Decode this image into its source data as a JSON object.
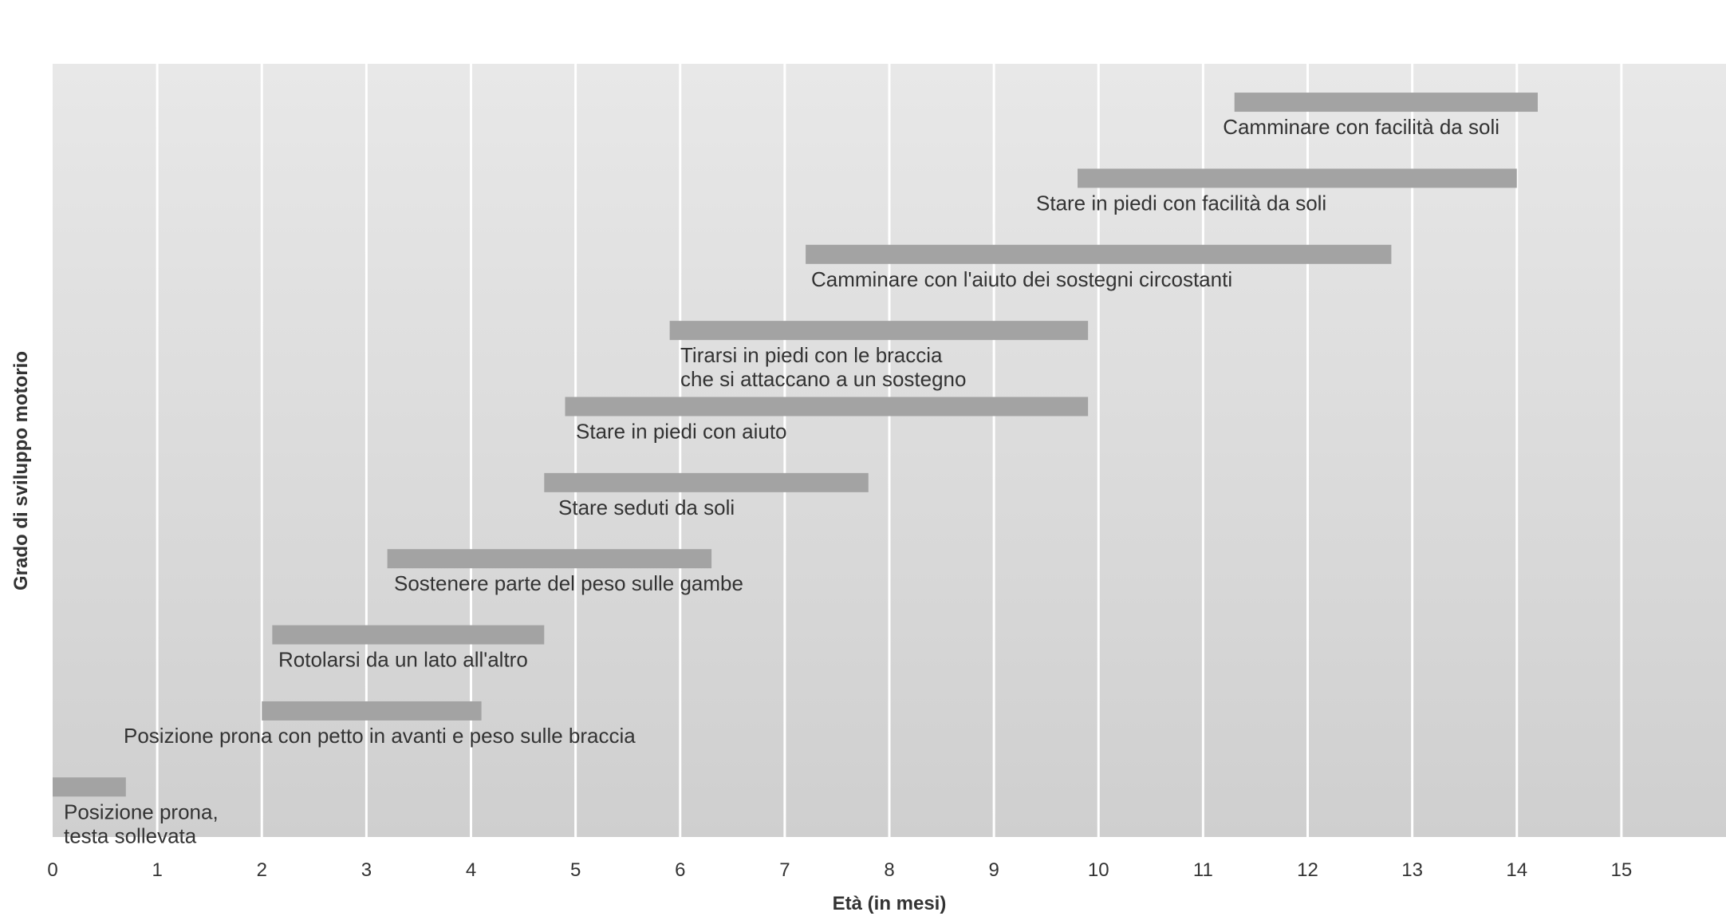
{
  "chart_data": {
    "type": "range-bar",
    "x_label": "Età (in mesi)",
    "y_label": "Grado di sviluppo motorio",
    "categories": [
      [
        "Posizione prona,",
        "testa sollevata"
      ],
      [
        "Posizione prona con petto in avanti e peso sulle braccia"
      ],
      [
        "Rotolarsi da un lato all'altro"
      ],
      [
        "Sostenere parte del peso sulle gambe"
      ],
      [
        "Stare seduti da soli"
      ],
      [
        "Stare in piedi con aiuto"
      ],
      [
        "Tirarsi in piedi con le braccia",
        "che si attaccano a un sostegno"
      ],
      [
        "Camminare con l'aiuto dei sostegni circostanti"
      ],
      [
        "Stare in piedi con facilità da soli"
      ],
      [
        "Camminare con facilità da soli"
      ]
    ],
    "start": [
      0,
      2,
      2.1,
      3.2,
      4.7,
      4.9,
      5.9,
      7.2,
      9.8,
      11.3
    ],
    "end": [
      0.7,
      4.1,
      4.7,
      6.3,
      7.8,
      9.9,
      9.9,
      12.8,
      14,
      14.2
    ],
    "color": "#a3a3a3",
    "xlim": [
      0,
      16
    ],
    "xticks": [
      0,
      1,
      2,
      3,
      4,
      5,
      6,
      7,
      8,
      9,
      10,
      11,
      12,
      13,
      14,
      15
    ],
    "grid": true
  }
}
